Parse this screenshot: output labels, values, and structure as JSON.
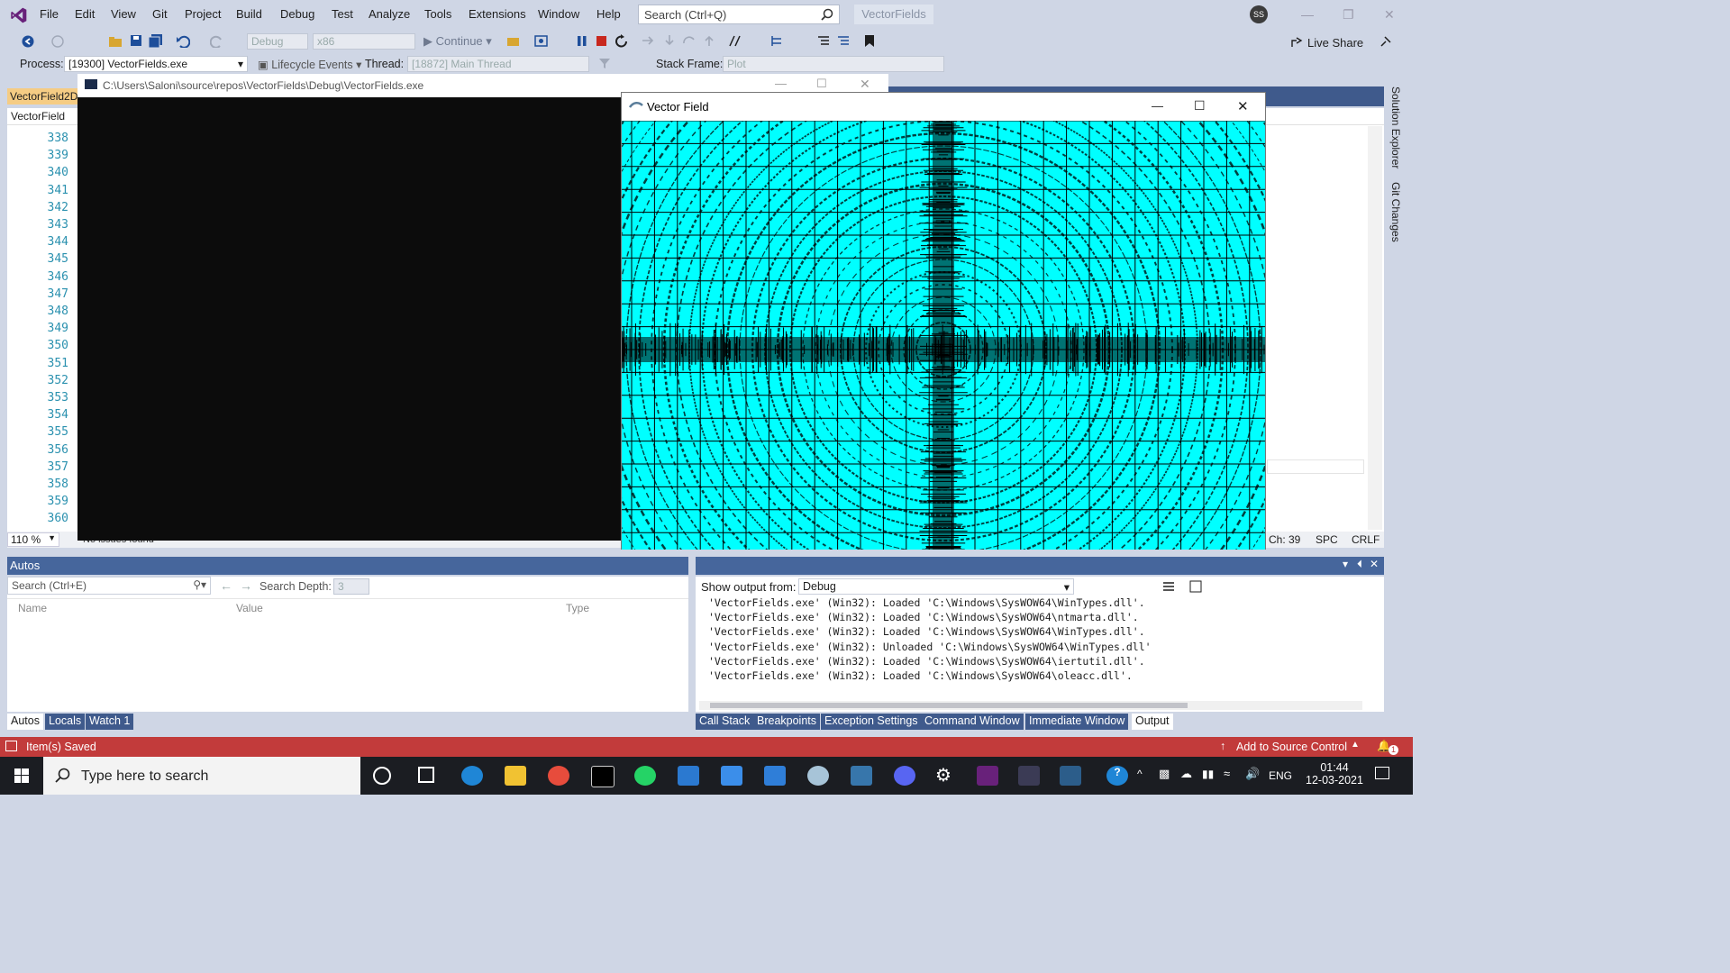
{
  "menubar": {
    "items": [
      "File",
      "Edit",
      "View",
      "Git",
      "Project",
      "Build",
      "Debug",
      "Test",
      "Analyze",
      "Tools",
      "Extensions",
      "Window",
      "Help"
    ],
    "search_placeholder": "Search (Ctrl+Q)",
    "solution_name": "VectorFields",
    "user_initials": "SS",
    "live_share": "Live Share"
  },
  "toolbar": {
    "config": "Debug",
    "platform": "x86",
    "continue": "Continue",
    "process_label": "Process:",
    "process_value": "[19300] VectorFields.exe",
    "lifecycle_events": "Lifecycle Events",
    "thread_label": "Thread:",
    "thread_value": "[18872] Main Thread",
    "stack_frame_label": "Stack Frame:",
    "stack_frame_value": "Plot"
  },
  "editor": {
    "doc_tab": "VectorField2D",
    "nav_combo": "VectorField",
    "line_numbers": [
      "338",
      "339",
      "340",
      "341",
      "342",
      "343",
      "344",
      "345",
      "346",
      "347",
      "348",
      "349",
      "350",
      "351",
      "352",
      "353",
      "354",
      "355",
      "356",
      "357",
      "358",
      "359",
      "360"
    ],
    "zoom": "110 %",
    "issues": "No issues found",
    "status_ch": "Ch: 39",
    "status_spc": "SPC",
    "status_crlf": "CRLF"
  },
  "side_tabs": {
    "solution_explorer": "Solution Explorer",
    "git_changes": "Git Changes"
  },
  "console_window": {
    "path": "C:\\Users\\Saloni\\source\\repos\\VectorFields\\Debug\\VectorFields.exe"
  },
  "vector_window": {
    "title": "Vector Field",
    "grid_color": "#000000",
    "background_color": "#00ffff"
  },
  "autos": {
    "title": "Autos",
    "search_placeholder": "Search (Ctrl+E)",
    "search_depth_label": "Search Depth:",
    "search_depth_value": "3",
    "columns": [
      "Name",
      "Value",
      "Type"
    ],
    "tabs": [
      "Autos",
      "Locals",
      "Watch 1"
    ]
  },
  "output": {
    "show_output_label": "Show output from:",
    "source": "Debug",
    "lines": [
      "'VectorFields.exe' (Win32): Loaded 'C:\\Windows\\SysWOW64\\WinTypes.dll'.",
      "'VectorFields.exe' (Win32): Loaded 'C:\\Windows\\SysWOW64\\ntmarta.dll'.",
      "'VectorFields.exe' (Win32): Loaded 'C:\\Windows\\SysWOW64\\WinTypes.dll'.",
      "'VectorFields.exe' (Win32): Unloaded 'C:\\Windows\\SysWOW64\\WinTypes.dll'",
      "'VectorFields.exe' (Win32): Loaded 'C:\\Windows\\SysWOW64\\iertutil.dll'.",
      "'VectorFields.exe' (Win32): Loaded 'C:\\Windows\\SysWOW64\\oleacc.dll'."
    ],
    "tabs": [
      "Call Stack",
      "Breakpoints",
      "Exception Settings",
      "Command Window",
      "Immediate Window",
      "Output"
    ]
  },
  "statusbar": {
    "left": "Item(s) Saved",
    "right": "Add to Source Control",
    "notifications": "1"
  },
  "taskbar": {
    "search_placeholder": "Type here to search",
    "language": "ENG",
    "time": "01:44",
    "date": "12-03-2021"
  }
}
